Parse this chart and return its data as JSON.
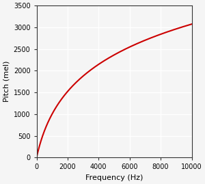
{
  "title": "",
  "xlabel": "Frequency (Hz)",
  "ylabel": "Pitch (mel)",
  "xlim": [
    0,
    10000
  ],
  "ylim": [
    0,
    3500
  ],
  "xticks": [
    0,
    2000,
    4000,
    6000,
    8000,
    10000
  ],
  "yticks": [
    0,
    500,
    1000,
    1500,
    2000,
    2500,
    3000,
    3500
  ],
  "line_color": "#cc0000",
  "line_width": 1.5,
  "background_color": "#f5f5f5",
  "plot_bg_color": "#f5f5f5",
  "grid_color": "#ffffff",
  "grid_linewidth": 1.0,
  "figsize": [
    3.0,
    2.69
  ],
  "dpi": 100,
  "tick_labelsize": 7,
  "xlabel_fontsize": 8,
  "ylabel_fontsize": 8
}
